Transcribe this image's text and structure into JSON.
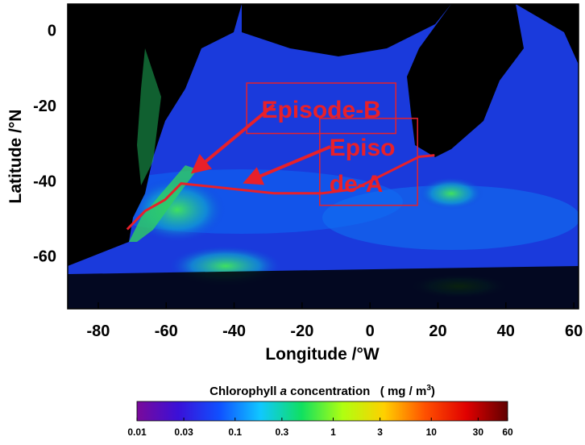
{
  "chart_data": {
    "type": "map",
    "xlabel": "Longitude /°W",
    "ylabel": "Latitude /°N",
    "xlim": [
      -89,
      61.4
    ],
    "ylim": [
      -74,
      7
    ],
    "xticks": [
      -80,
      -60,
      -40,
      -20,
      0,
      20,
      40,
      60
    ],
    "yticks": [
      -60,
      -40,
      -20,
      0
    ],
    "boxes": [
      {
        "label": [
          "Episode-B"
        ],
        "lon": [
          -36.3,
          7.6
        ],
        "lat": [
          -27.4,
          -14
        ]
      },
      {
        "label": [
          "Episo",
          "de-A"
        ],
        "lon": [
          -14.8,
          14
        ],
        "lat": [
          -46.5,
          -23.4
        ]
      }
    ],
    "track": {
      "lon": [
        -71.5,
        -66.2,
        -60.3,
        -55.6,
        -28.3,
        -14,
        -4.6,
        14.4,
        19
      ],
      "lat": [
        -52.9,
        -48,
        -45,
        -40.7,
        -43.3,
        -43.3,
        -42.2,
        -33.6,
        -33.2
      ]
    },
    "annotation_color": "#e8202a",
    "colorbar": {
      "title": [
        "Chlorophyll ",
        "a",
        " concentration   ( mg / m",
        "3",
        ")"
      ],
      "log": true,
      "lim": [
        0.01,
        60
      ],
      "ticks": [
        0.01,
        0.03,
        0.1,
        0.3,
        1,
        3,
        10,
        30,
        60
      ],
      "colors": [
        "#7a0a9a",
        "#3a10d8",
        "#1050ff",
        "#10c8ff",
        "#10e060",
        "#b0ff10",
        "#ffd000",
        "#ff5000",
        "#e00000",
        "#600000"
      ]
    }
  }
}
